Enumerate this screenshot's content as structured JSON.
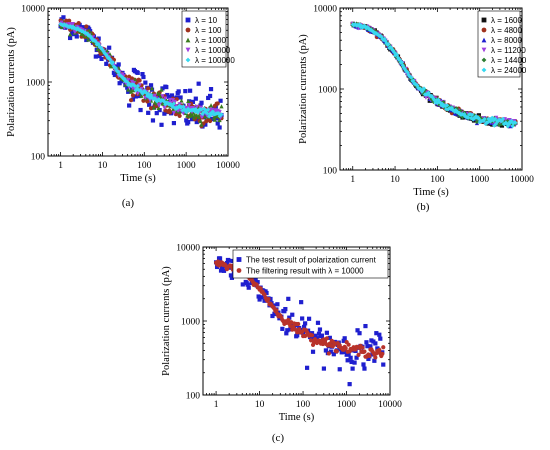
{
  "chart_data": [
    {
      "id": "a",
      "type": "scatter",
      "panel_label": "(a)",
      "xlabel": "Time (s)",
      "ylabel": "Polarization currents (pA)",
      "xscale": "log",
      "yscale": "log",
      "xlim": [
        0.5,
        10000
      ],
      "ylim": [
        100,
        10000
      ],
      "xticks": [
        1,
        10,
        100,
        1000,
        10000
      ],
      "xtick_labels": [
        "1",
        "10",
        "100",
        "1000",
        "10000"
      ],
      "yticks": [
        100,
        1000,
        10000
      ],
      "ytick_labels": [
        "100",
        "1000",
        "10000"
      ],
      "legend_position": "top-right",
      "series": [
        {
          "name": "λ = 10",
          "marker": "square",
          "color": "#1f1fcf",
          "scatter": 0.15
        },
        {
          "name": "λ = 100",
          "marker": "circle",
          "color": "#a0321e",
          "scatter": 0.09
        },
        {
          "name": "λ = 1000",
          "marker": "triangle-up",
          "color": "#3a7a1e",
          "scatter": 0.06
        },
        {
          "name": "λ = 10000",
          "marker": "triangle-down",
          "color": "#a040e0",
          "scatter": 0.035
        },
        {
          "name": "λ = 100000",
          "marker": "diamond",
          "color": "#38d8f0",
          "scatter": 0.02
        }
      ],
      "curve_points": [
        [
          1,
          6000
        ],
        [
          2,
          5500
        ],
        [
          3,
          5000
        ],
        [
          5,
          4200
        ],
        [
          8,
          3200
        ],
        [
          12,
          2400
        ],
        [
          18,
          1700
        ],
        [
          25,
          1300
        ],
        [
          35,
          1050
        ],
        [
          50,
          900
        ],
        [
          70,
          800
        ],
        [
          100,
          700
        ],
        [
          150,
          620
        ],
        [
          200,
          570
        ],
        [
          300,
          520
        ],
        [
          500,
          470
        ],
        [
          800,
          440
        ],
        [
          1000,
          420
        ],
        [
          2000,
          400
        ],
        [
          4000,
          385
        ],
        [
          7000,
          370
        ]
      ]
    },
    {
      "id": "b",
      "type": "scatter",
      "panel_label": "(b)",
      "xlabel": "Time (s)",
      "ylabel": "Polarization currents (pA)",
      "xscale": "log",
      "yscale": "log",
      "xlim": [
        0.5,
        10000
      ],
      "ylim": [
        100,
        10000
      ],
      "xticks": [
        1,
        10,
        100,
        1000,
        10000
      ],
      "xtick_labels": [
        "1",
        "10",
        "100",
        "1000",
        "10000"
      ],
      "yticks": [
        100,
        1000,
        10000
      ],
      "ytick_labels": [
        "100",
        "1000",
        "10000"
      ],
      "legend_position": "top-right",
      "series": [
        {
          "name": "λ = 1600",
          "marker": "square",
          "color": "#111111",
          "scatter": 0.02
        },
        {
          "name": "λ = 4800",
          "marker": "circle",
          "color": "#a0321e",
          "scatter": 0.02
        },
        {
          "name": "λ = 8000",
          "marker": "triangle-up",
          "color": "#1f1fcf",
          "scatter": 0.02
        },
        {
          "name": "λ = 11200",
          "marker": "triangle-down",
          "color": "#a040e0",
          "scatter": 0.02
        },
        {
          "name": "λ = 14400",
          "marker": "diamond",
          "color": "#2e7d32",
          "scatter": 0.02
        },
        {
          "name": "λ = 24000",
          "marker": "diamond",
          "color": "#38d8f0",
          "scatter": 0.02
        }
      ],
      "curve_points": [
        [
          1,
          6200
        ],
        [
          2,
          5800
        ],
        [
          3,
          5200
        ],
        [
          5,
          4300
        ],
        [
          8,
          3200
        ],
        [
          12,
          2400
        ],
        [
          18,
          1700
        ],
        [
          25,
          1300
        ],
        [
          35,
          1050
        ],
        [
          50,
          900
        ],
        [
          70,
          800
        ],
        [
          100,
          700
        ],
        [
          150,
          620
        ],
        [
          200,
          570
        ],
        [
          300,
          520
        ],
        [
          500,
          470
        ],
        [
          800,
          440
        ],
        [
          1000,
          420
        ],
        [
          2000,
          400
        ],
        [
          4000,
          385
        ],
        [
          7000,
          375
        ]
      ]
    },
    {
      "id": "c",
      "type": "scatter",
      "panel_label": "(c)",
      "xlabel": "Time (s)",
      "ylabel": "Polarization currents (pA)",
      "xscale": "log",
      "yscale": "log",
      "xlim": [
        0.5,
        10000
      ],
      "ylim": [
        100,
        10000
      ],
      "xticks": [
        1,
        10,
        100,
        1000,
        10000
      ],
      "xtick_labels": [
        "1",
        "10",
        "100",
        "1000",
        "10000"
      ],
      "yticks": [
        100,
        1000,
        10000
      ],
      "ytick_labels": [
        "100",
        "1000",
        "10000"
      ],
      "legend_position": "top-right",
      "series": [
        {
          "name": "The test result of polarization current",
          "marker": "square",
          "color": "#1f1fcf",
          "scatter": 0.15
        },
        {
          "name": "The filtering result with λ = 10000",
          "marker": "circle",
          "color": "#b8322a",
          "scatter": 0.035
        }
      ],
      "curve_points": [
        [
          1,
          6000
        ],
        [
          2,
          5500
        ],
        [
          3,
          5000
        ],
        [
          5,
          4200
        ],
        [
          8,
          3200
        ],
        [
          12,
          2400
        ],
        [
          18,
          1700
        ],
        [
          25,
          1300
        ],
        [
          35,
          1050
        ],
        [
          50,
          900
        ],
        [
          70,
          800
        ],
        [
          100,
          700
        ],
        [
          150,
          620
        ],
        [
          200,
          570
        ],
        [
          300,
          520
        ],
        [
          500,
          470
        ],
        [
          800,
          440
        ],
        [
          1000,
          420
        ],
        [
          2000,
          400
        ],
        [
          4000,
          385
        ],
        [
          7000,
          370
        ]
      ]
    }
  ]
}
